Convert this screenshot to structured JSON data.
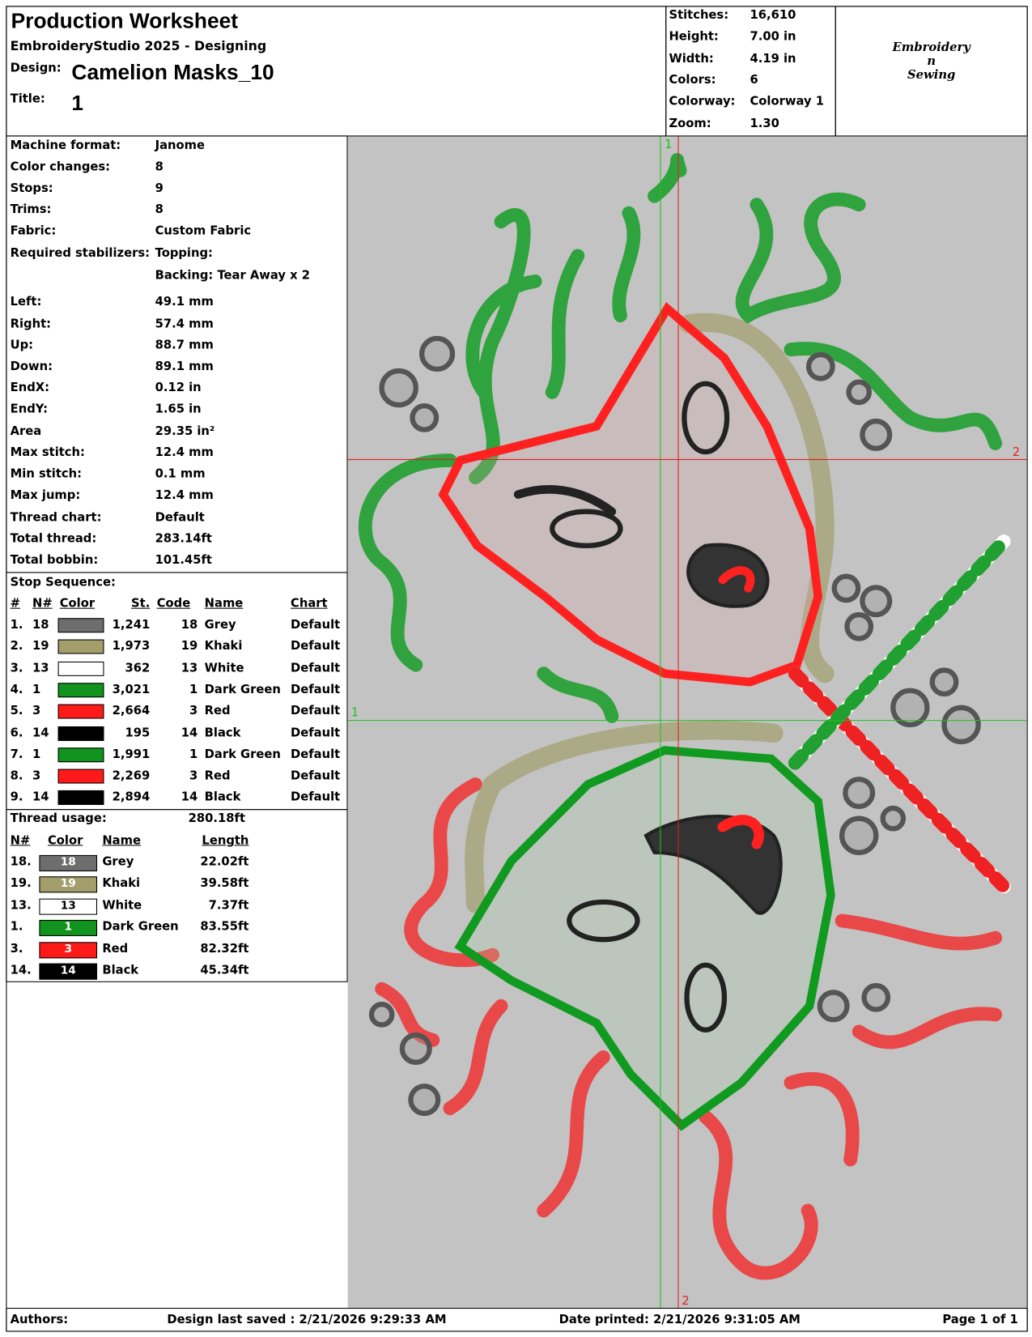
{
  "header": {
    "title": "Production Worksheet",
    "software": "EmbroideryStudio 2025 - Designing",
    "design_label": "Design:",
    "design": "Camelion Masks_10",
    "title_label": "Title:",
    "title_value": "1"
  },
  "stats": [
    {
      "label": "Stitches:",
      "value": "16,610"
    },
    {
      "label": "Height:",
      "value": "7.00 in"
    },
    {
      "label": "Width:",
      "value": "4.19 in"
    },
    {
      "label": "Colors:",
      "value": "6"
    },
    {
      "label": "Colorway:",
      "value": "Colorway 1"
    },
    {
      "label": "Zoom:",
      "value": "1.30"
    }
  ],
  "logo": [
    "Embroidery",
    "n",
    "Sewing"
  ],
  "info": [
    {
      "label": "Machine format:",
      "value": "Janome"
    },
    {
      "label": "Color changes:",
      "value": "8"
    },
    {
      "label": "Stops:",
      "value": "9"
    },
    {
      "label": "Trims:",
      "value": "8"
    },
    {
      "label": "Fabric:",
      "value": "Custom Fabric"
    },
    {
      "label": "Required stabilizers:",
      "value": "Topping:"
    },
    {
      "value": "Backing: Tear Away x 2"
    },
    {
      "label": "Left:",
      "value": "49.1 mm"
    },
    {
      "label": "Right:",
      "value": "57.4 mm"
    },
    {
      "label": "Up:",
      "value": "88.7 mm"
    },
    {
      "label": "Down:",
      "value": "89.1 mm"
    },
    {
      "label": "EndX:",
      "value": "0.12 in"
    },
    {
      "label": "EndY:",
      "value": "1.65 in"
    },
    {
      "label": "Area",
      "value": "29.35 in²"
    },
    {
      "label": "Max stitch:",
      "value": "12.4 mm"
    },
    {
      "label": "Min stitch:",
      "value": "0.1 mm"
    },
    {
      "label": "Max jump:",
      "value": "12.4 mm"
    },
    {
      "label": "Thread chart:",
      "value": "Default"
    },
    {
      "label": "Total thread:",
      "value": "283.14ft"
    },
    {
      "label": "Total bobbin:",
      "value": "101.45ft"
    }
  ],
  "stop_sequence": {
    "title": "Stop Sequence:",
    "headers": [
      "#",
      "N#",
      "Color",
      "St.",
      "Code",
      "Name",
      "Chart"
    ],
    "rows": [
      {
        "num": "1.",
        "n": "18",
        "color": "#6d6d6d",
        "st": "1,241",
        "code": "18",
        "name": "Grey",
        "chart": "Default"
      },
      {
        "num": "2.",
        "n": "19",
        "color": "#a39e6c",
        "st": "1,973",
        "code": "19",
        "name": "Khaki",
        "chart": "Default"
      },
      {
        "num": "3.",
        "n": "13",
        "color": "#ffffff",
        "st": "362",
        "code": "13",
        "name": "White",
        "chart": "Default"
      },
      {
        "num": "4.",
        "n": "1",
        "color": "#11931d",
        "st": "3,021",
        "code": "1",
        "name": "Dark Green",
        "chart": "Default"
      },
      {
        "num": "5.",
        "n": "3",
        "color": "#ff1a1a",
        "st": "2,664",
        "code": "3",
        "name": "Red",
        "chart": "Default"
      },
      {
        "num": "6.",
        "n": "14",
        "color": "#000000",
        "st": "195",
        "code": "14",
        "name": "Black",
        "chart": "Default"
      },
      {
        "num": "7.",
        "n": "1",
        "color": "#11931d",
        "st": "1,991",
        "code": "1",
        "name": "Dark Green",
        "chart": "Default"
      },
      {
        "num": "8.",
        "n": "3",
        "color": "#ff1a1a",
        "st": "2,269",
        "code": "3",
        "name": "Red",
        "chart": "Default"
      },
      {
        "num": "9.",
        "n": "14",
        "color": "#000000",
        "st": "2,894",
        "code": "14",
        "name": "Black",
        "chart": "Default"
      }
    ]
  },
  "thread_usage": {
    "title": "Thread usage:",
    "total": "280.18ft",
    "headers": [
      "N#",
      "Color",
      "Name",
      "Length"
    ],
    "rows": [
      {
        "n": "18.",
        "swatch": "18",
        "color": "#6d6d6d",
        "name": "Grey",
        "length": "22.02ft"
      },
      {
        "n": "19.",
        "swatch": "19",
        "color": "#a39e6c",
        "name": "Khaki",
        "length": "39.58ft"
      },
      {
        "n": "13.",
        "swatch": "13",
        "color": "#ffffff",
        "name": "White",
        "length": "7.37ft"
      },
      {
        "n": "1.",
        "swatch": "1",
        "color": "#11931d",
        "name": "Dark Green",
        "length": "83.55ft"
      },
      {
        "n": "3.",
        "swatch": "3",
        "color": "#ff1a1a",
        "name": "Red",
        "length": "82.32ft"
      },
      {
        "n": "14.",
        "swatch": "14",
        "color": "#000000",
        "name": "Black",
        "length": "45.34ft"
      }
    ]
  },
  "canvas": {
    "labels": [
      "1",
      "2",
      "2",
      "1"
    ]
  },
  "footer": {
    "authors": "Authors:",
    "saved": "Design last saved : 2/21/2026 9:29:33 AM",
    "printed": "Date printed: 2/21/2026 9:31:05 AM",
    "page": "Page 1 of 1"
  }
}
